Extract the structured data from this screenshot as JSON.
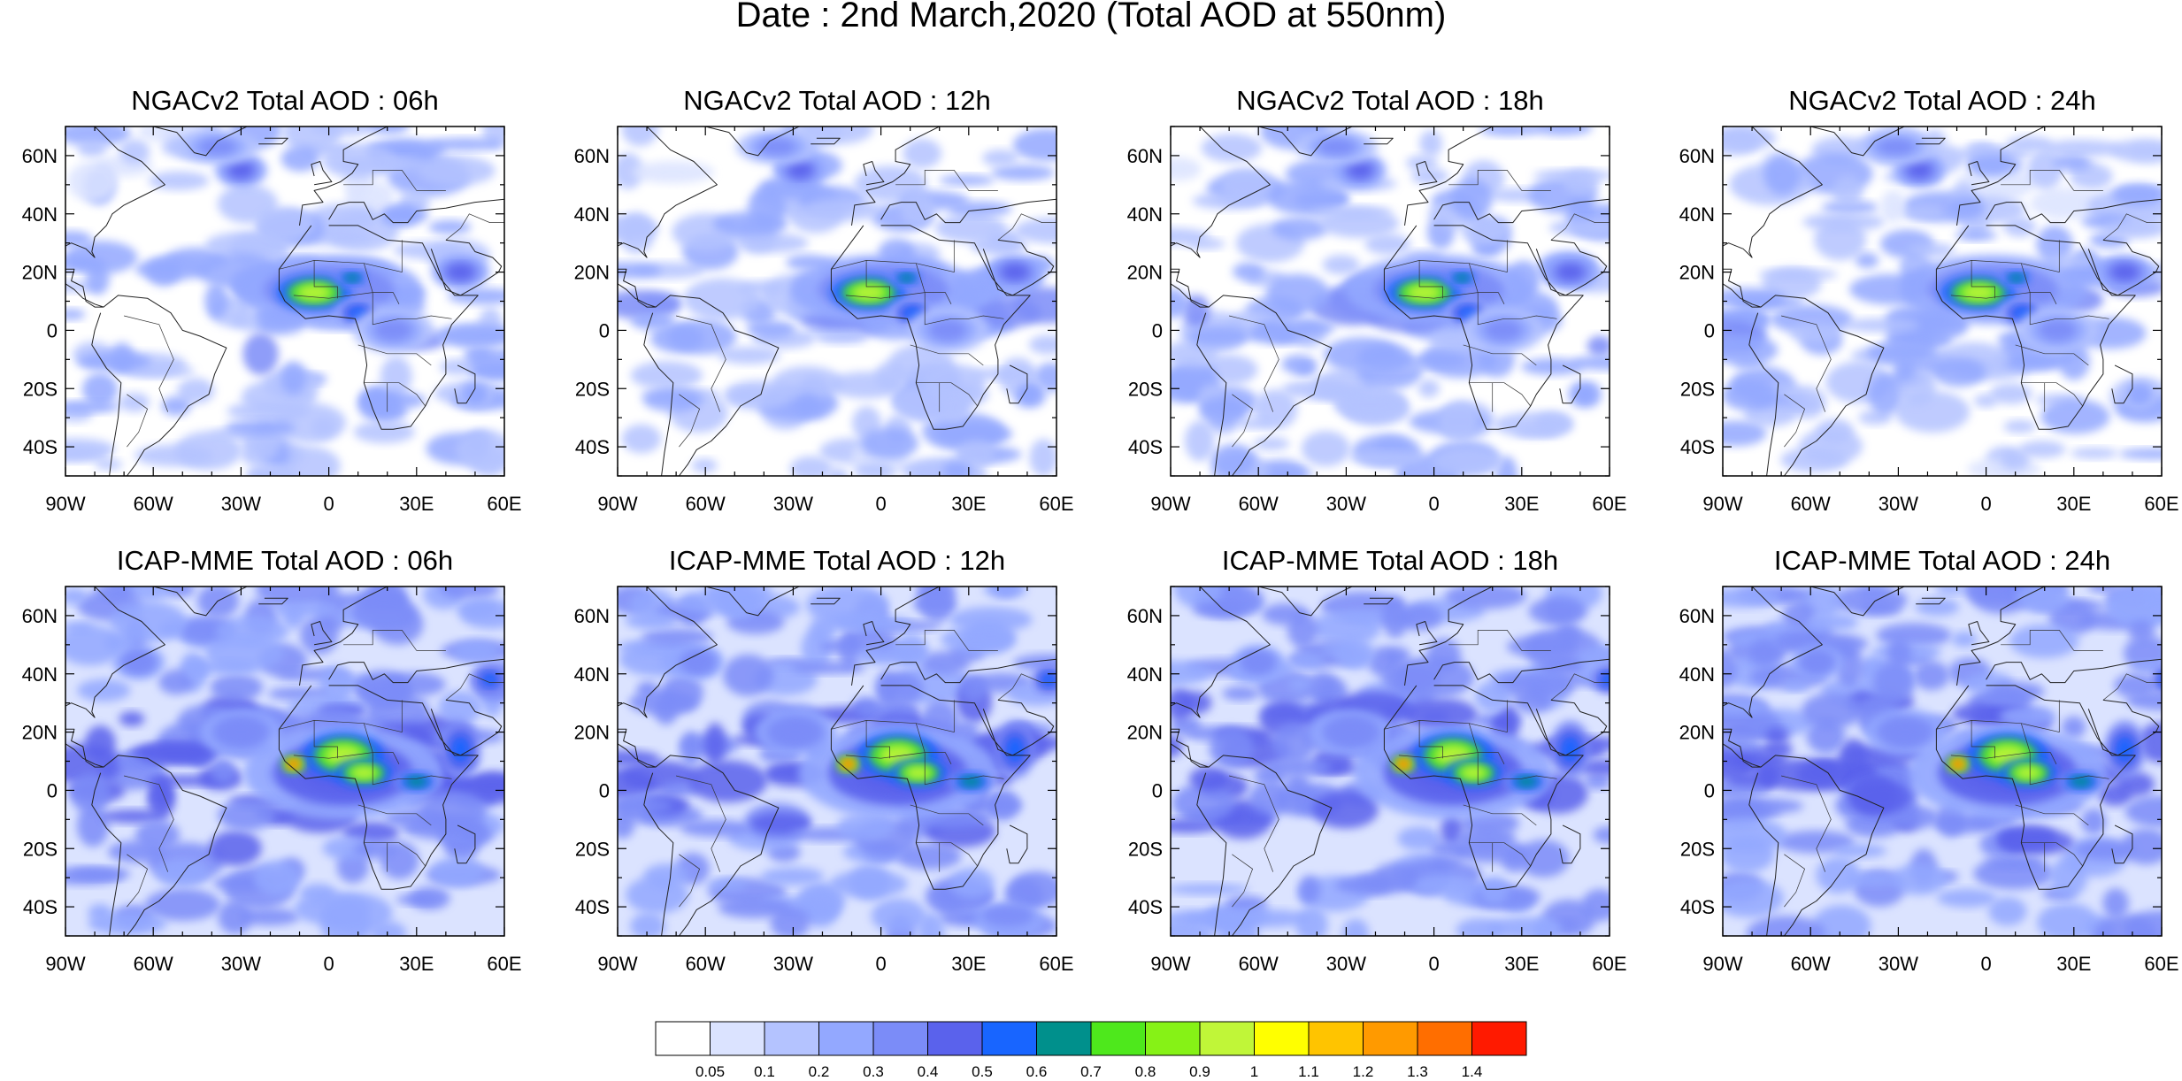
{
  "title": "Date : 2nd March,2020 (Total AOD at 550nm)",
  "panel_titles": {
    "row1": [
      "NGACv2 Total AOD : 06h",
      "NGACv2 Total AOD : 12h",
      "NGACv2 Total AOD : 18h",
      "NGACv2 Total AOD : 24h"
    ],
    "row2": [
      "ICAP-MME Total AOD : 06h",
      "ICAP-MME Total AOD : 12h",
      "ICAP-MME Total AOD : 18h",
      "ICAP-MME Total AOD : 24h"
    ]
  },
  "axes": {
    "lon_ticks": [
      "90W",
      "60W",
      "30W",
      "0",
      "30E",
      "60E"
    ],
    "lat_ticks": [
      "60N",
      "40N",
      "20N",
      "0",
      "20S",
      "40S"
    ],
    "lon_values": [
      -90,
      -60,
      -30,
      0,
      30,
      60
    ],
    "lat_values": [
      60,
      40,
      20,
      0,
      -20,
      -40
    ],
    "lon_range": [
      -90,
      60
    ],
    "lat_range": [
      -50,
      70
    ]
  },
  "colorbar": {
    "labels": [
      "0.05",
      "0.1",
      "0.2",
      "0.3",
      "0.4",
      "0.5",
      "0.6",
      "0.7",
      "0.8",
      "0.9",
      "1",
      "1.1",
      "1.2",
      "1.3",
      "1.4"
    ],
    "colors": [
      "#ffffff",
      "#dbe3ff",
      "#b4c3ff",
      "#93a8ff",
      "#7b8cf8",
      "#5a62ec",
      "#1865ff",
      "#00908c",
      "#4ee81c",
      "#86f216",
      "#c0f638",
      "#ffff00",
      "#ffc400",
      "#ff9a00",
      "#ff6e00",
      "#ff1a00"
    ]
  },
  "plumes": {
    "ngac": [
      {
        "lon": -30,
        "lat": 55,
        "rl": 9,
        "rt": 6,
        "v": 0.4
      },
      {
        "lon": -38,
        "lat": 63,
        "rl": 14,
        "rt": 6,
        "v": 0.3
      },
      {
        "lon": 0,
        "lat": 14,
        "rl": 32,
        "rt": 12,
        "v": 0.35
      },
      {
        "lon": -5,
        "lat": 13,
        "rl": 13,
        "rt": 6,
        "v": 0.9
      },
      {
        "lon": 8,
        "lat": 18,
        "rl": 6,
        "rt": 3,
        "v": 0.6
      },
      {
        "lon": 10,
        "lat": 6,
        "rl": 8,
        "rt": 5,
        "v": 0.5
      },
      {
        "lon": 45,
        "lat": 20,
        "rl": 10,
        "rt": 6,
        "v": 0.45
      },
      {
        "lon": 22,
        "lat": 0,
        "rl": 14,
        "rt": 8,
        "v": 0.3
      },
      {
        "lon": 50,
        "lat": -22,
        "rl": 6,
        "rt": 5,
        "v": 0.25
      }
    ],
    "icap": [
      {
        "lon": 5,
        "lat": 6,
        "rl": 34,
        "rt": 16,
        "v": 0.42
      },
      {
        "lon": 5,
        "lat": 12,
        "rl": 14,
        "rt": 8,
        "v": 0.9
      },
      {
        "lon": 12,
        "lat": 6,
        "rl": 10,
        "rt": 5,
        "v": 0.85
      },
      {
        "lon": -12,
        "lat": 9,
        "rl": 4,
        "rt": 3,
        "v": 1.3
      },
      {
        "lon": 30,
        "lat": 3,
        "rl": 8,
        "rt": 4,
        "v": 0.55
      },
      {
        "lon": 45,
        "lat": 14,
        "rl": 7,
        "rt": 10,
        "v": 0.45
      },
      {
        "lon": 55,
        "lat": 38,
        "rl": 6,
        "rt": 5,
        "v": 0.45
      },
      {
        "lon": -30,
        "lat": 20,
        "rl": 14,
        "rt": 8,
        "v": 0.3
      },
      {
        "lon": -65,
        "lat": 44,
        "rl": 9,
        "rt": 6,
        "v": 0.3
      }
    ]
  }
}
